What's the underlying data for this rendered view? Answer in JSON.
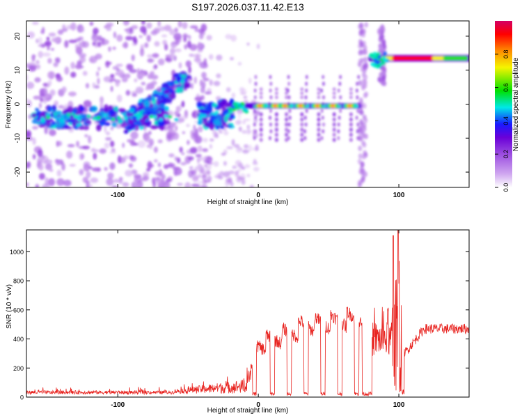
{
  "title": "S197.2026.037.11.42.E13",
  "colors": {
    "snr_line": "#e8231f",
    "colorbar": [
      "#ffffff",
      "#d0a8f0",
      "#9b4de0",
      "#6a00d8",
      "#1a1aff",
      "#00e8e8",
      "#00e000",
      "#f5f500",
      "#ff8c00",
      "#ff0000",
      "#d40064"
    ]
  },
  "chart_data": [
    {
      "type": "heatmap",
      "name": "spectrogram",
      "xlabel": "Height of straight line (km)",
      "ylabel": "Frequency (Hz)",
      "xlim": [
        -165,
        150
      ],
      "ylim": [
        -24.5,
        24.5
      ],
      "xticks": [
        -100,
        0,
        100
      ],
      "yticks": [
        -20,
        -10,
        0,
        10,
        20
      ],
      "features": [
        {
          "label": "scattered noise",
          "x_range": [
            -165,
            -40
          ],
          "y_range": [
            -24,
            24
          ]
        },
        {
          "label": "band",
          "x_range": [
            -160,
            -70
          ],
          "y_center": -4
        },
        {
          "label": "rising band",
          "x_range": [
            -90,
            -50
          ],
          "y_from": -6,
          "y_to": 8
        },
        {
          "label": "strong line",
          "x_range": [
            -20,
            72
          ],
          "y_center": -0.5,
          "amplitude": 0.8
        },
        {
          "label": "strong line",
          "x_range": [
            85,
            150
          ],
          "y_center": 13.5,
          "amplitude": 1.0
        }
      ],
      "colorbar": {
        "label": "Normalized spectral amplitude",
        "range": [
          0.0,
          1.0
        ],
        "ticks": [
          "0.0",
          "0.2",
          "0.4",
          "0.6",
          "0.8"
        ]
      }
    },
    {
      "type": "line",
      "name": "snr",
      "xlabel": "Height of straight line (km)",
      "ylabel": "SNR (10 * v/v)",
      "xlim": [
        -165,
        150
      ],
      "ylim": [
        0,
        1150
      ],
      "xticks": [
        -100,
        0,
        100
      ],
      "yticks": [
        0,
        200,
        400,
        600,
        800,
        1000
      ],
      "series": [
        {
          "name": "SNR",
          "segments": [
            {
              "x_range": [
                -165,
                -60
              ],
              "level": 25,
              "noise": 20
            },
            {
              "x_range": [
                -60,
                -5
              ],
              "level": 45,
              "noise": 60
            },
            {
              "x_range": [
                -8,
                72
              ],
              "level": 440,
              "noise": 60,
              "gaps_at": [
                -3,
                10,
                22,
                34,
                46,
                58,
                70
              ]
            },
            {
              "x_range": [
                80,
                96
              ],
              "level": 450,
              "noise": 80
            },
            {
              "x_range": [
                96,
                101
              ],
              "level": 1100,
              "noise": 200
            },
            {
              "x_range": [
                101,
                150
              ],
              "level": 470,
              "noise": 40
            }
          ],
          "peaks": [
            {
              "x": 96,
              "y": 1110
            },
            {
              "x": 99.5,
              "y": 1150
            }
          ]
        }
      ]
    }
  ]
}
